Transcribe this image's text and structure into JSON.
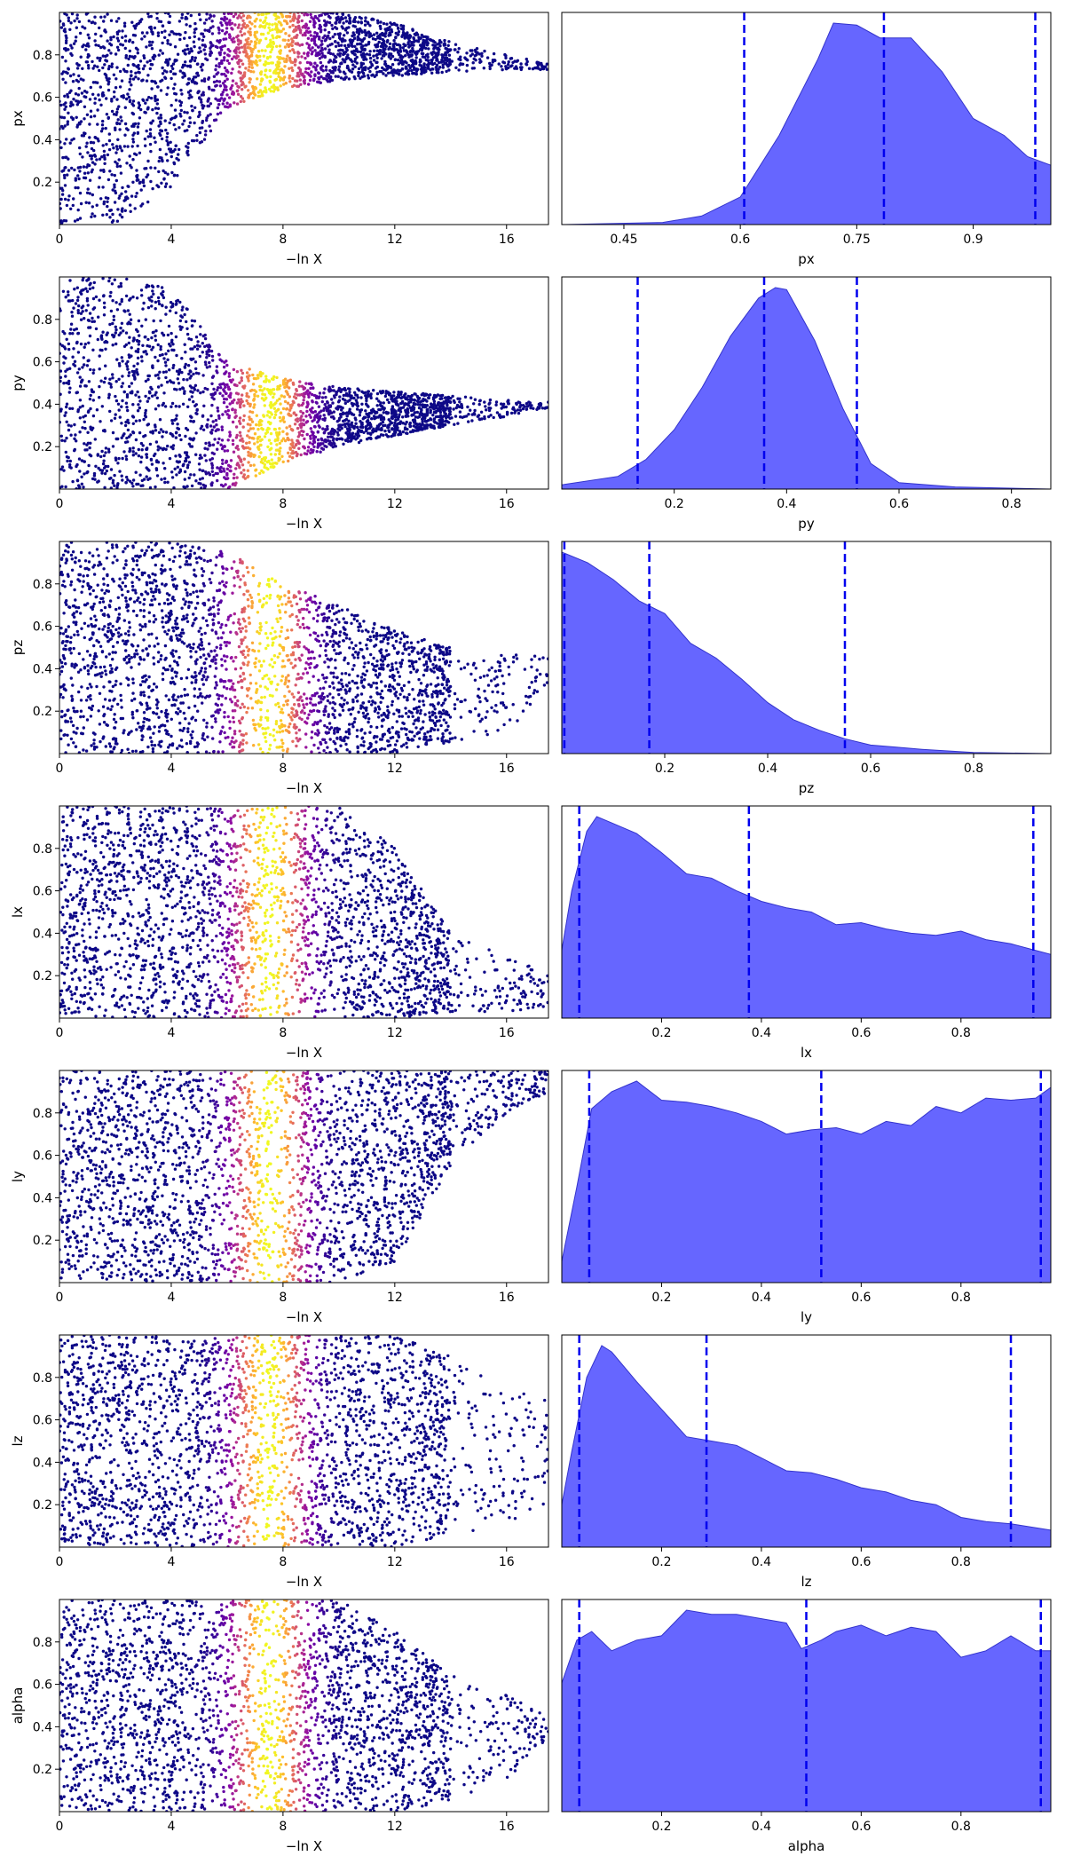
{
  "colors": {
    "scatter_colormap": "plasma",
    "kde_fill": "#6666ff",
    "kde_edge": "#3333cc",
    "quantile_line": "#0000ee",
    "frame": "#000000"
  },
  "chart_data": [
    {
      "type": "scatter",
      "title": "",
      "xlabel": "−ln X",
      "ylabel": "px",
      "xlim": [
        0,
        17.5
      ],
      "ylim": [
        0,
        1
      ],
      "xticks": [
        0,
        4,
        8,
        12,
        16
      ],
      "yticks": [
        0.2,
        0.4,
        0.6,
        0.8
      ],
      "color_by": "density across −ln X (peak near 7.5)",
      "envelope": {
        "x": [
          0,
          2,
          4,
          6,
          8,
          10,
          12,
          14,
          16,
          17.5
        ],
        "y_low": [
          0,
          0,
          0.18,
          0.55,
          0.64,
          0.68,
          0.7,
          0.72,
          0.73,
          0.73
        ],
        "y_high": [
          1,
          1,
          1,
          1,
          1,
          1,
          0.95,
          0.86,
          0.8,
          0.76
        ]
      }
    },
    {
      "type": "area",
      "title": "",
      "xlabel": "px",
      "ylabel": "",
      "xlim": [
        0.37,
        1.0
      ],
      "xticks": [
        0.45,
        0.6,
        0.75,
        0.9
      ],
      "kde": {
        "x": [
          0.37,
          0.5,
          0.55,
          0.6,
          0.65,
          0.7,
          0.72,
          0.75,
          0.78,
          0.82,
          0.86,
          0.9,
          0.94,
          0.97,
          1.0
        ],
        "y": [
          0.0,
          0.01,
          0.04,
          0.13,
          0.42,
          0.78,
          0.95,
          0.94,
          0.88,
          0.88,
          0.72,
          0.5,
          0.42,
          0.32,
          0.28
        ]
      },
      "quantiles": [
        0.605,
        0.785,
        0.98
      ]
    },
    {
      "type": "scatter",
      "title": "",
      "xlabel": "−ln X",
      "ylabel": "py",
      "xlim": [
        0,
        17.5
      ],
      "ylim": [
        0,
        1
      ],
      "xticks": [
        0,
        4,
        8,
        12,
        16
      ],
      "yticks": [
        0.2,
        0.4,
        0.6,
        0.8
      ],
      "color_by": "density across −ln X (peak near 7.5)",
      "envelope": {
        "x": [
          0,
          2,
          4,
          6,
          8,
          10,
          12,
          14,
          16,
          17.5
        ],
        "y_low": [
          0,
          0,
          0,
          0,
          0.12,
          0.2,
          0.25,
          0.3,
          0.34,
          0.38
        ],
        "y_high": [
          1,
          1,
          0.95,
          0.6,
          0.52,
          0.48,
          0.46,
          0.44,
          0.42,
          0.41
        ]
      }
    },
    {
      "type": "area",
      "title": "",
      "xlabel": "py",
      "ylabel": "",
      "xlim": [
        0,
        0.87
      ],
      "xticks": [
        0.2,
        0.4,
        0.6,
        0.8
      ],
      "kde": {
        "x": [
          0,
          0.1,
          0.15,
          0.2,
          0.25,
          0.3,
          0.35,
          0.38,
          0.4,
          0.45,
          0.5,
          0.55,
          0.6,
          0.7,
          0.87
        ],
        "y": [
          0.02,
          0.06,
          0.14,
          0.28,
          0.48,
          0.72,
          0.9,
          0.95,
          0.94,
          0.7,
          0.38,
          0.12,
          0.03,
          0.01,
          0.0
        ]
      },
      "quantiles": [
        0.135,
        0.36,
        0.525
      ]
    },
    {
      "type": "scatter",
      "title": "",
      "xlabel": "−ln X",
      "ylabel": "pz",
      "xlim": [
        0,
        17.5
      ],
      "ylim": [
        0,
        1
      ],
      "xticks": [
        0,
        4,
        8,
        12,
        16
      ],
      "yticks": [
        0.2,
        0.4,
        0.6,
        0.8
      ],
      "color_by": "density across −ln X (peak near 7.5)",
      "envelope": {
        "x": [
          0,
          2,
          4,
          6,
          8,
          10,
          12,
          14,
          16,
          17.5
        ],
        "y_low": [
          0,
          0,
          0,
          0,
          0,
          0,
          0,
          0.05,
          0.1,
          0.3
        ],
        "y_high": [
          1,
          1,
          1,
          0.95,
          0.8,
          0.7,
          0.58,
          0.5,
          0.48,
          0.45
        ]
      }
    },
    {
      "type": "area",
      "title": "",
      "xlabel": "pz",
      "ylabel": "",
      "xlim": [
        0,
        0.95
      ],
      "xticks": [
        0.2,
        0.4,
        0.6,
        0.8
      ],
      "kde": {
        "x": [
          0,
          0.05,
          0.1,
          0.15,
          0.2,
          0.25,
          0.3,
          0.35,
          0.4,
          0.45,
          0.5,
          0.55,
          0.6,
          0.65,
          0.7,
          0.8,
          0.95
        ],
        "y": [
          0.95,
          0.9,
          0.82,
          0.72,
          0.66,
          0.52,
          0.45,
          0.35,
          0.24,
          0.16,
          0.11,
          0.07,
          0.04,
          0.03,
          0.02,
          0.005,
          0.0
        ]
      },
      "quantiles": [
        0.005,
        0.17,
        0.55
      ]
    },
    {
      "type": "scatter",
      "title": "",
      "xlabel": "−ln X",
      "ylabel": "lx",
      "xlim": [
        0,
        17.5
      ],
      "ylim": [
        0,
        1
      ],
      "xticks": [
        0,
        4,
        8,
        12,
        16
      ],
      "yticks": [
        0.2,
        0.4,
        0.6,
        0.8
      ],
      "color_by": "density across −ln X (peak near 7.5)",
      "envelope": {
        "x": [
          0,
          2,
          4,
          6,
          8,
          10,
          12,
          14,
          16,
          17.5
        ],
        "y_low": [
          0.02,
          0,
          0,
          0,
          0,
          0,
          0,
          0.02,
          0.03,
          0.05
        ],
        "y_high": [
          1,
          1,
          1,
          1,
          1,
          1,
          0.8,
          0.4,
          0.3,
          0.2
        ]
      }
    },
    {
      "type": "area",
      "title": "",
      "xlabel": "lx",
      "ylabel": "",
      "xlim": [
        0,
        0.98
      ],
      "xticks": [
        0.2,
        0.4,
        0.6,
        0.8
      ],
      "kde": {
        "x": [
          0,
          0.02,
          0.05,
          0.07,
          0.1,
          0.15,
          0.2,
          0.25,
          0.3,
          0.35,
          0.4,
          0.45,
          0.5,
          0.55,
          0.6,
          0.65,
          0.7,
          0.75,
          0.8,
          0.85,
          0.9,
          0.98
        ],
        "y": [
          0.32,
          0.6,
          0.88,
          0.95,
          0.92,
          0.87,
          0.78,
          0.68,
          0.66,
          0.6,
          0.55,
          0.52,
          0.5,
          0.44,
          0.45,
          0.42,
          0.4,
          0.39,
          0.41,
          0.37,
          0.35,
          0.3
        ]
      },
      "quantiles": [
        0.035,
        0.375,
        0.945
      ]
    },
    {
      "type": "scatter",
      "title": "",
      "xlabel": "−ln X",
      "ylabel": "ly",
      "xlim": [
        0,
        17.5
      ],
      "ylim": [
        0,
        1
      ],
      "xticks": [
        0,
        4,
        8,
        12,
        16
      ],
      "yticks": [
        0.2,
        0.4,
        0.6,
        0.8
      ],
      "color_by": "density across −ln X (peak near 7.5)",
      "envelope": {
        "x": [
          0,
          2,
          4,
          6,
          8,
          10,
          12,
          14,
          16,
          17.5
        ],
        "y_low": [
          0.02,
          0,
          0,
          0,
          0,
          0,
          0.1,
          0.55,
          0.8,
          0.9
        ],
        "y_high": [
          1,
          1,
          1,
          1,
          1,
          1,
          1,
          1,
          1,
          1
        ]
      }
    },
    {
      "type": "area",
      "title": "",
      "xlabel": "ly",
      "ylabel": "",
      "xlim": [
        0,
        0.98
      ],
      "xticks": [
        0.2,
        0.4,
        0.6,
        0.8
      ],
      "kde": {
        "x": [
          0,
          0.03,
          0.06,
          0.1,
          0.15,
          0.2,
          0.25,
          0.3,
          0.35,
          0.4,
          0.45,
          0.5,
          0.55,
          0.6,
          0.65,
          0.7,
          0.75,
          0.8,
          0.85,
          0.9,
          0.95,
          0.98
        ],
        "y": [
          0.1,
          0.45,
          0.82,
          0.9,
          0.95,
          0.86,
          0.85,
          0.83,
          0.8,
          0.76,
          0.7,
          0.72,
          0.73,
          0.7,
          0.76,
          0.74,
          0.83,
          0.8,
          0.87,
          0.86,
          0.87,
          0.92
        ]
      },
      "quantiles": [
        0.055,
        0.52,
        0.96
      ]
    },
    {
      "type": "scatter",
      "title": "",
      "xlabel": "−ln X",
      "ylabel": "lz",
      "xlim": [
        0,
        17.5
      ],
      "ylim": [
        0,
        1
      ],
      "xticks": [
        0,
        4,
        8,
        12,
        16
      ],
      "yticks": [
        0.2,
        0.4,
        0.6,
        0.8
      ],
      "color_by": "density across −ln X (peak near 7.5)",
      "envelope": {
        "x": [
          0,
          2,
          4,
          6,
          8,
          10,
          12,
          14,
          16,
          17.5
        ],
        "y_low": [
          0.02,
          0,
          0,
          0,
          0,
          0,
          0,
          0.05,
          0.1,
          0.2
        ],
        "y_high": [
          1,
          1,
          1,
          1,
          1,
          1,
          1,
          0.9,
          0.75,
          0.7
        ]
      }
    },
    {
      "type": "area",
      "title": "",
      "xlabel": "lz",
      "ylabel": "",
      "xlim": [
        0,
        0.98
      ],
      "xticks": [
        0.2,
        0.4,
        0.6,
        0.8
      ],
      "kde": {
        "x": [
          0,
          0.02,
          0.05,
          0.08,
          0.1,
          0.15,
          0.2,
          0.25,
          0.3,
          0.35,
          0.4,
          0.45,
          0.5,
          0.55,
          0.6,
          0.65,
          0.7,
          0.75,
          0.8,
          0.85,
          0.9,
          0.98
        ],
        "y": [
          0.2,
          0.45,
          0.8,
          0.95,
          0.92,
          0.78,
          0.65,
          0.52,
          0.5,
          0.48,
          0.42,
          0.36,
          0.35,
          0.32,
          0.28,
          0.26,
          0.22,
          0.2,
          0.14,
          0.12,
          0.11,
          0.08
        ]
      },
      "quantiles": [
        0.035,
        0.29,
        0.9
      ]
    },
    {
      "type": "scatter",
      "title": "",
      "xlabel": "−ln X",
      "ylabel": "alpha",
      "xlim": [
        0,
        17.5
      ],
      "ylim": [
        0,
        1
      ],
      "xticks": [
        0,
        4,
        8,
        12,
        16
      ],
      "yticks": [
        0.2,
        0.4,
        0.6,
        0.8
      ],
      "color_by": "density across −ln X (peak near 7.5)",
      "envelope": {
        "x": [
          0,
          2,
          4,
          6,
          8,
          10,
          12,
          14,
          16,
          17.5
        ],
        "y_low": [
          0.02,
          0,
          0,
          0,
          0,
          0,
          0,
          0.05,
          0.15,
          0.35
        ],
        "y_high": [
          1,
          1,
          1,
          1,
          1,
          1,
          0.85,
          0.65,
          0.55,
          0.45
        ]
      }
    },
    {
      "type": "area",
      "title": "",
      "xlabel": "alpha",
      "ylabel": "",
      "xlim": [
        0,
        0.98
      ],
      "xticks": [
        0.2,
        0.4,
        0.6,
        0.8
      ],
      "kde": {
        "x": [
          0,
          0.03,
          0.06,
          0.1,
          0.15,
          0.2,
          0.25,
          0.3,
          0.35,
          0.4,
          0.45,
          0.48,
          0.52,
          0.55,
          0.6,
          0.65,
          0.7,
          0.75,
          0.8,
          0.85,
          0.9,
          0.95,
          0.98
        ],
        "y": [
          0.6,
          0.8,
          0.84,
          0.75,
          0.8,
          0.82,
          0.94,
          0.92,
          0.92,
          0.9,
          0.88,
          0.76,
          0.8,
          0.84,
          0.87,
          0.82,
          0.86,
          0.84,
          0.72,
          0.75,
          0.82,
          0.75,
          0.75
        ]
      },
      "quantiles": [
        0.035,
        0.49,
        0.96
      ]
    }
  ]
}
